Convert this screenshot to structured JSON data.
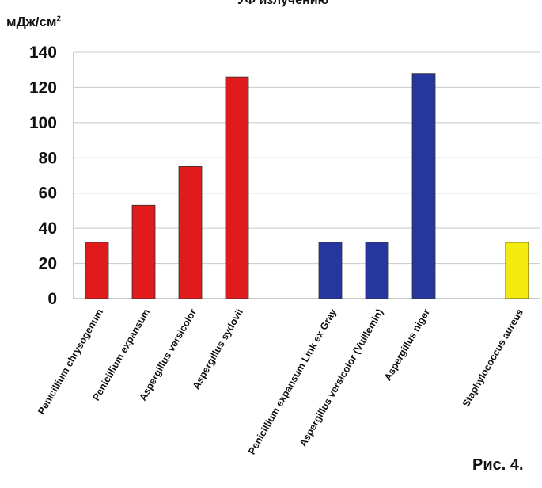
{
  "header": {
    "title_fragment": "УФ излучению",
    "unit_base": "мДж/см",
    "unit_sup": "2"
  },
  "figure_label": "Рис. 4.",
  "chart_data": {
    "type": "bar",
    "title": "УФ излучению",
    "ylabel": "мДж/см2",
    "xlabel": "",
    "ylim": [
      0,
      140
    ],
    "yticks": [
      0,
      20,
      40,
      60,
      80,
      100,
      120,
      140
    ],
    "grid": true,
    "categories": [
      "Penicillium chrysogenum",
      "Penicillium expansum",
      "Aspergillus versicolor",
      "Aspergillus sydovii",
      "",
      "Penicillium expansum Link ex Gray",
      "Aspergillus versicolor (Vuillemin)",
      "Aspergillus niger",
      "",
      "Staphylococcus aureus"
    ],
    "values": [
      32,
      53,
      75,
      126,
      null,
      32,
      32,
      128,
      null,
      32
    ],
    "colors": [
      "#e01b1b",
      "#e01b1b",
      "#e01b1b",
      "#e01b1b",
      null,
      "#25369e",
      "#25369e",
      "#25369e",
      null,
      "#f3ea0e"
    ]
  }
}
